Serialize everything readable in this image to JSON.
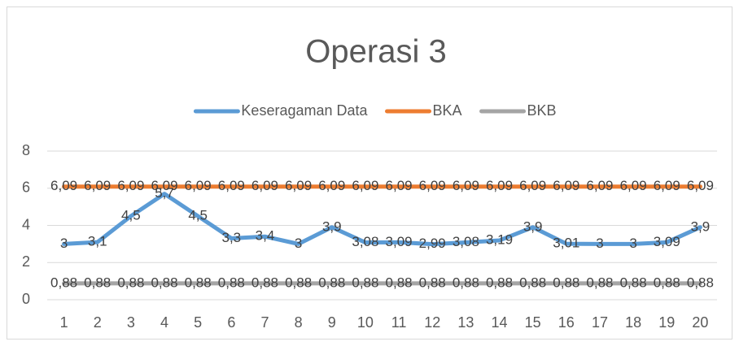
{
  "chart_data": {
    "type": "line",
    "title": "Operasi 3",
    "categories": [
      "1",
      "2",
      "3",
      "4",
      "5",
      "6",
      "7",
      "8",
      "9",
      "10",
      "11",
      "12",
      "13",
      "14",
      "15",
      "16",
      "17",
      "18",
      "19",
      "20"
    ],
    "series": [
      {
        "name": "Keseragaman Data",
        "color": "#5b9bd5",
        "values": [
          3,
          3.1,
          4.5,
          5.7,
          4.5,
          3.3,
          3.4,
          3,
          3.9,
          3.08,
          3.09,
          2.99,
          3.08,
          3.19,
          3.9,
          3.01,
          3,
          3,
          3.09,
          3.9
        ],
        "value_labels": [
          "3",
          "3,1",
          "4,5",
          "5,7",
          "4,5",
          "3,3",
          "3,4",
          "3",
          "3,9",
          "3,08",
          "3,09",
          "2,99",
          "3,08",
          "3,19",
          "3,9",
          "3,01",
          "3",
          "3",
          "3,09",
          "3,9"
        ]
      },
      {
        "name": "BKA",
        "color": "#ed7d31",
        "values": [
          6.09,
          6.09,
          6.09,
          6.09,
          6.09,
          6.09,
          6.09,
          6.09,
          6.09,
          6.09,
          6.09,
          6.09,
          6.09,
          6.09,
          6.09,
          6.09,
          6.09,
          6.09,
          6.09,
          6.09
        ],
        "value_labels": [
          "6,09",
          "6,09",
          "6,09",
          "6,09",
          "6,09",
          "6,09",
          "6,09",
          "6,09",
          "6,09",
          "6,09",
          "6,09",
          "6,09",
          "6,09",
          "6,09",
          "6,09",
          "6,09",
          "6,09",
          "6,09",
          "6,09",
          "6,09"
        ]
      },
      {
        "name": "BKB",
        "color": "#a5a5a5",
        "values": [
          0.88,
          0.88,
          0.88,
          0.88,
          0.88,
          0.88,
          0.88,
          0.88,
          0.88,
          0.88,
          0.88,
          0.88,
          0.88,
          0.88,
          0.88,
          0.88,
          0.88,
          0.88,
          0.88,
          0.88
        ],
        "value_labels": [
          "0,88",
          "0,88",
          "0,88",
          "0,88",
          "0,88",
          "0,88",
          "0,88",
          "0,88",
          "0,88",
          "0,88",
          "0,88",
          "0,88",
          "0,88",
          "0,88",
          "0,88",
          "0,88",
          "0,88",
          "0,88",
          "0,88",
          "0,88"
        ]
      }
    ],
    "ylim": [
      0,
      8
    ],
    "yticks": [
      0,
      2,
      4,
      6,
      8
    ],
    "grid": true,
    "legend": "top"
  }
}
